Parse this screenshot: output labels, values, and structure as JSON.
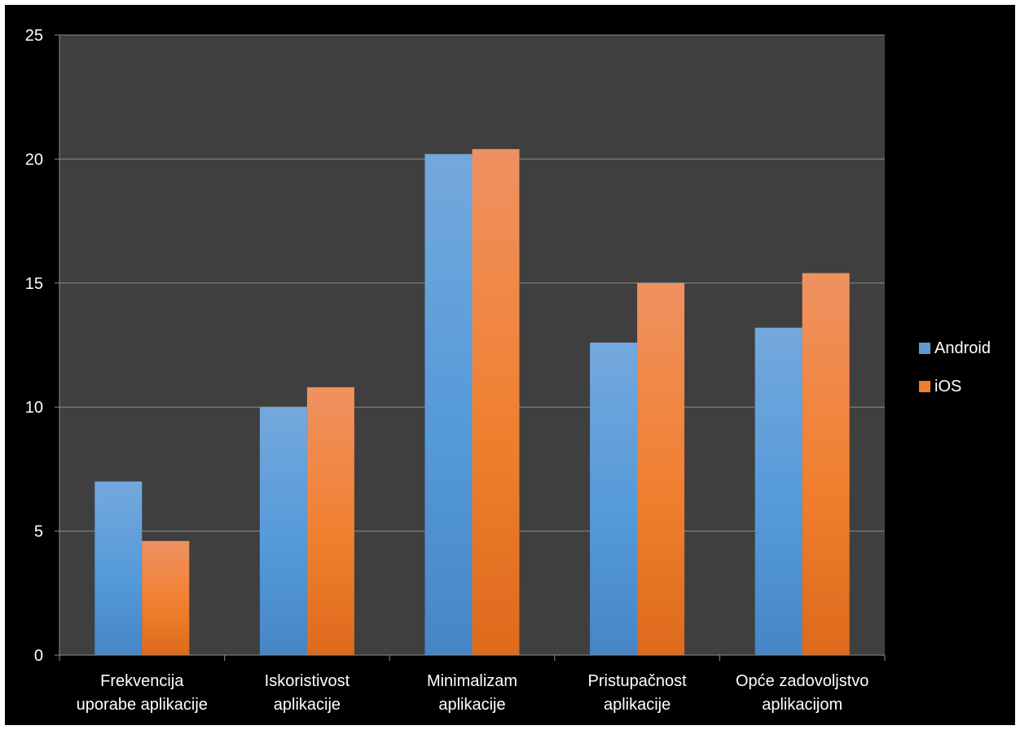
{
  "chart_data": {
    "type": "bar",
    "categories": [
      [
        "Frekvencija",
        "uporabe aplikacije"
      ],
      [
        "Iskoristivost",
        "aplikacije"
      ],
      [
        "Minimalizam",
        "aplikacije"
      ],
      [
        "Pristupačnost",
        "aplikacije"
      ],
      [
        "Opće zadovoljstvo",
        "aplikacijom"
      ]
    ],
    "series": [
      {
        "name": "Android",
        "values": [
          7.0,
          10.0,
          20.2,
          12.6,
          13.2
        ],
        "color": "#5b9bd5"
      },
      {
        "name": "iOS",
        "values": [
          4.6,
          10.8,
          20.4,
          15.0,
          15.4
        ],
        "color": "#ed7d31"
      }
    ],
    "y_ticks": [
      "0",
      "5",
      "10",
      "15",
      "20",
      "25"
    ],
    "ylim": [
      0,
      25
    ],
    "grid": true,
    "legend_position": "right",
    "title": "",
    "xlabel": "",
    "ylabel": ""
  }
}
